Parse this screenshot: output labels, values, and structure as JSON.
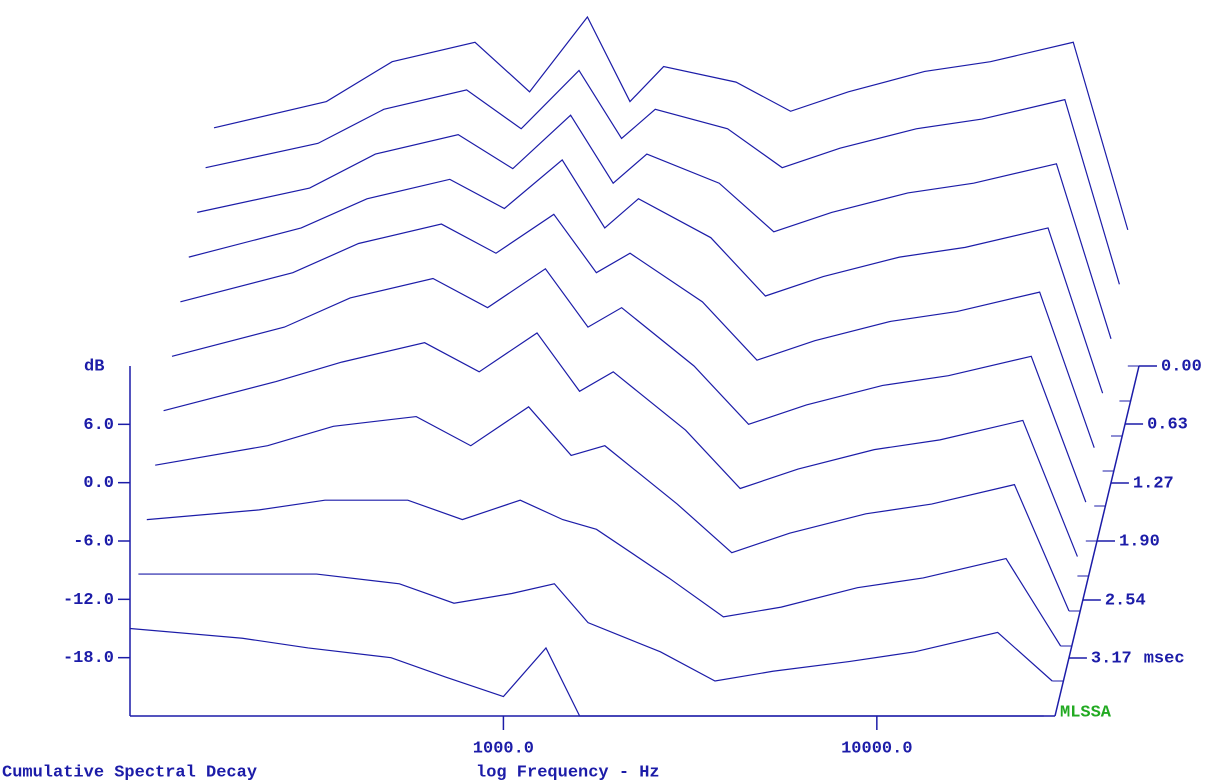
{
  "chart_data": {
    "type": "waterfall",
    "title": "Cumulative Spectral Decay",
    "xlabel": "log Frequency - Hz",
    "ylabel": "dB",
    "zlabel": "msec",
    "brand": "MLSSA",
    "color": "#1c1ca8",
    "xscale": "log",
    "x": [
      100,
      200,
      300,
      500,
      700,
      1000,
      1300,
      1600,
      2500,
      3500,
      5000,
      8000,
      12000,
      20000,
      28000
    ],
    "z": [
      0,
      0.38,
      0.76,
      1.14,
      1.52,
      1.9,
      2.28,
      2.66,
      3.04,
      3.42,
      3.8
    ],
    "values": [
      [
        0.5,
        3.2,
        7.3,
        9.3,
        4.2,
        11.9,
        3.2,
        6.8,
        5.2,
        2.2,
        4.2,
        6.3,
        7.3,
        9.3,
        -10
      ],
      [
        0,
        2.5,
        6,
        8,
        4,
        10,
        3,
        6,
        4,
        0,
        2,
        4,
        5,
        7,
        -12
      ],
      [
        -1,
        1.5,
        5,
        7,
        3.5,
        9,
        2,
        5,
        2,
        -3,
        -1,
        1,
        2,
        4,
        -14
      ],
      [
        -2,
        1,
        4,
        6,
        3,
        8,
        1,
        4,
        0,
        -6,
        -4,
        -2,
        -1,
        1,
        -16
      ],
      [
        -3,
        0,
        3,
        5,
        2,
        6,
        0,
        2,
        -3,
        -9,
        -7,
        -5,
        -4,
        -2,
        -18
      ],
      [
        -5,
        -2,
        1,
        3,
        0,
        4,
        -2,
        0,
        -6,
        -12,
        -10,
        -8,
        -7,
        -5,
        -20
      ],
      [
        -7,
        -4,
        -2,
        0,
        -3,
        1,
        -5,
        -3,
        -9,
        -15,
        -13,
        -11,
        -10,
        -8,
        -22
      ],
      [
        -9,
        -7,
        -5,
        -4,
        -7,
        -3,
        -8,
        -7,
        -13,
        -18,
        -16,
        -14,
        -13,
        -11,
        -24
      ],
      [
        -11,
        -10,
        -9,
        -9,
        -11,
        -9,
        -11,
        -12,
        -17,
        -21,
        -20,
        -18,
        -17,
        -15,
        -24
      ],
      [
        -13,
        -13,
        -13,
        -14,
        -16,
        -15,
        -14,
        -18,
        -21,
        -24,
        -23,
        -22,
        -21,
        -19,
        -24
      ],
      [
        -15,
        -16,
        -17,
        -18,
        -20,
        -22,
        -17,
        -24,
        -24,
        -24,
        -24,
        -24,
        -24,
        -24,
        -24
      ]
    ],
    "xlim": [
      100,
      30000
    ],
    "xticks": [
      {
        "value": 1000,
        "label": "1000.0"
      },
      {
        "value": 10000,
        "label": "10000.0"
      }
    ],
    "ylim": [
      -24,
      12
    ],
    "yticks": [
      {
        "value": 6,
        "label": "6.0"
      },
      {
        "value": 0,
        "label": "0.0"
      },
      {
        "value": -6,
        "label": "-6.0"
      },
      {
        "value": -12,
        "label": "-12.0"
      },
      {
        "value": -18,
        "label": "-18.0"
      }
    ],
    "zlim": [
      0,
      3.8
    ],
    "zticks": [
      {
        "value": 0,
        "label": "0.00"
      },
      0.63,
      1.27,
      {
        "value": 1.9,
        "label": "1.90"
      },
      2.54,
      3.17
    ]
  }
}
